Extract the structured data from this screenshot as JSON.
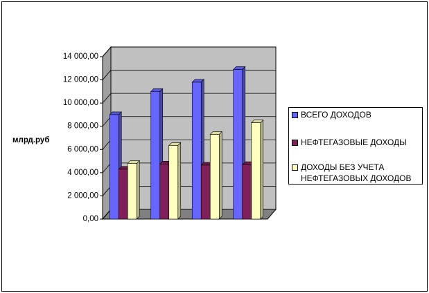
{
  "chart_data": {
    "type": "bar",
    "y_label": "млрд.руб",
    "categories": [
      null,
      null,
      null,
      null
    ],
    "series": [
      {
        "name": "ВСЕГО ДОХОДОВ",
        "color": "#6666ff",
        "values": [
          9000,
          11000,
          11800,
          12900
        ]
      },
      {
        "name": "НЕФТЕГАЗОВЫЕ ДОХОДЫ",
        "color": "#80205a",
        "values": [
          4300,
          4750,
          4650,
          4700
        ]
      },
      {
        "name": "ДОХОДЫ БЕЗ УЧЕТА НЕФТЕГАЗОВЫХ ДОХОДОВ",
        "color": "#ffffc0",
        "values": [
          4800,
          6350,
          7300,
          8300
        ]
      }
    ],
    "ylim": [
      0,
      14000
    ],
    "yticks": [
      {
        "value": 0,
        "label": "0,00"
      },
      {
        "value": 2000,
        "label": "2 000,00"
      },
      {
        "value": 4000,
        "label": "4 000,00"
      },
      {
        "value": 6000,
        "label": "6 000,00"
      },
      {
        "value": 8000,
        "label": "8 000,00"
      },
      {
        "value": 10000,
        "label": "10 000,00"
      },
      {
        "value": 12000,
        "label": "12 000,00"
      },
      {
        "value": 14000,
        "label": "14 000,00"
      }
    ],
    "grid": true
  }
}
